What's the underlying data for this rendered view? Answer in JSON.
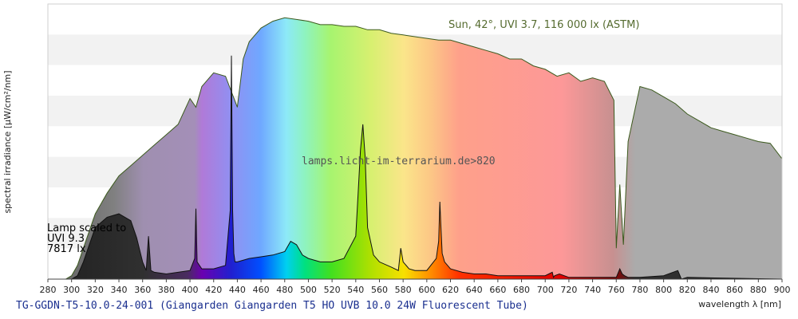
{
  "chart_data": {
    "type": "area",
    "ylabel": "spectral irradiance [µW/cm²/nm]",
    "xlabel": "wavelength λ [nm]",
    "xlim": [
      280,
      900
    ],
    "xticks": [
      280,
      300,
      320,
      340,
      360,
      380,
      400,
      420,
      440,
      460,
      480,
      500,
      520,
      540,
      560,
      580,
      600,
      620,
      640,
      660,
      680,
      700,
      720,
      740,
      760,
      780,
      800,
      820,
      840,
      860,
      880,
      900
    ],
    "grid": "horizontal bands",
    "series": [
      {
        "name": "Sun, 42°, UVI 3.7, 116 000 lx (ASTM)",
        "x": [
          280,
          295,
          300,
          305,
          310,
          315,
          320,
          330,
          340,
          350,
          360,
          370,
          380,
          390,
          400,
          405,
          410,
          420,
          430,
          440,
          445,
          450,
          460,
          470,
          480,
          490,
          500,
          510,
          520,
          530,
          540,
          550,
          560,
          570,
          580,
          590,
          600,
          610,
          620,
          630,
          640,
          650,
          660,
          670,
          680,
          690,
          700,
          710,
          720,
          730,
          740,
          750,
          758,
          760,
          763,
          766,
          770,
          780,
          790,
          800,
          810,
          820,
          830,
          840,
          850,
          860,
          870,
          880,
          890,
          900
        ],
        "y": [
          0,
          0,
          2,
          8,
          18,
          28,
          38,
          50,
          60,
          66,
          72,
          78,
          84,
          90,
          105,
          100,
          112,
          120,
          118,
          100,
          128,
          138,
          146,
          150,
          152,
          151,
          150,
          148,
          148,
          147,
          147,
          145,
          145,
          143,
          142,
          141,
          140,
          139,
          139,
          137,
          135,
          133,
          131,
          128,
          128,
          124,
          122,
          118,
          120,
          115,
          117,
          115,
          104,
          18,
          55,
          20,
          80,
          112,
          110,
          106,
          102,
          96,
          92,
          88,
          86,
          84,
          82,
          80,
          79,
          70
        ]
      },
      {
        "name": "Lamp scaled to UVI 9.3 7817 lx",
        "x": [
          280,
          295,
          300,
          305,
          310,
          315,
          320,
          330,
          340,
          350,
          355,
          360,
          363,
          365,
          367,
          370,
          380,
          390,
          400,
          404,
          405,
          406,
          410,
          420,
          430,
          434,
          435,
          436,
          437,
          438,
          440,
          450,
          460,
          470,
          480,
          485,
          490,
          495,
          500,
          510,
          520,
          530,
          540,
          542,
          544,
          546,
          548,
          550,
          555,
          560,
          570,
          576,
          578,
          580,
          585,
          590,
          600,
          608,
          610,
          611,
          612,
          613,
          615,
          620,
          630,
          640,
          650,
          660,
          700,
          706,
          707,
          708,
          712,
          720,
          760,
          763,
          765,
          767,
          770,
          780,
          800,
          812,
          815,
          820,
          900
        ],
        "y": [
          0,
          0,
          0,
          2,
          10,
          20,
          30,
          36,
          38,
          34,
          24,
          10,
          5,
          25,
          5,
          4,
          3,
          4,
          5,
          12,
          41,
          10,
          6,
          6,
          8,
          40,
          130,
          40,
          15,
          10,
          10,
          12,
          13,
          14,
          16,
          22,
          20,
          14,
          12,
          10,
          10,
          12,
          25,
          50,
          75,
          90,
          70,
          30,
          14,
          10,
          7,
          5,
          18,
          10,
          6,
          5,
          5,
          12,
          22,
          45,
          30,
          15,
          10,
          6,
          4,
          3,
          3,
          2,
          2,
          4,
          1,
          2,
          3,
          1,
          1,
          6,
          3,
          2,
          1,
          1,
          2,
          5,
          0,
          1,
          0
        ]
      }
    ],
    "annotations": {
      "sun": "Sun, 42°, UVI 3.7, 116 000 lx (ASTM)",
      "watermark": "lamps.licht-im-terrarium.de>820",
      "lamp_line1": "Lamp scaled to",
      "lamp_line2": "UVI 9.3",
      "lamp_line3": "7817 lx"
    }
  },
  "caption": "TG-GGDN-T5-10.0-24-001 (Giangarden Giangarden T5 HO UVB 10.0 24W Fluorescent Tube)"
}
